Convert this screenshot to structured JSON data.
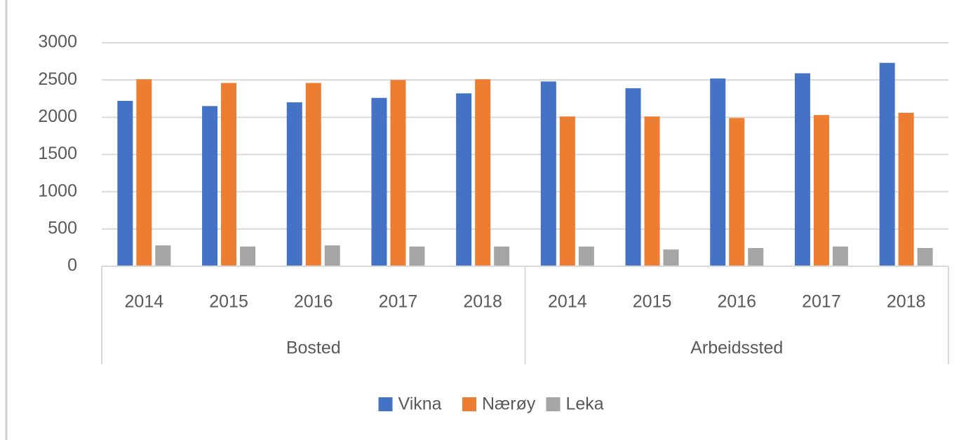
{
  "chart_data": {
    "type": "bar",
    "categories": [
      "2014",
      "2015",
      "2016",
      "2017",
      "2018",
      "2014",
      "2015",
      "2016",
      "2017",
      "2018"
    ],
    "category_groups": [
      "Bosted",
      "Arbeidssted"
    ],
    "series": [
      {
        "name": "Vikna",
        "color": "#4472c4",
        "values": [
          2220,
          2150,
          2200,
          2260,
          2320,
          2480,
          2390,
          2520,
          2590,
          2730
        ]
      },
      {
        "name": "Nærøy",
        "color": "#ed7d31",
        "values": [
          2510,
          2460,
          2460,
          2500,
          2510,
          2010,
          2010,
          1990,
          2030,
          2060
        ]
      },
      {
        "name": "Leka",
        "color": "#a5a5a5",
        "values": [
          280,
          265,
          280,
          265,
          265,
          265,
          225,
          245,
          265,
          245
        ]
      }
    ],
    "ylim": [
      0,
      3000
    ],
    "yticks": [
      0,
      500,
      1000,
      1500,
      2000,
      2500,
      3000
    ],
    "grid": true,
    "legend": "bottom"
  }
}
